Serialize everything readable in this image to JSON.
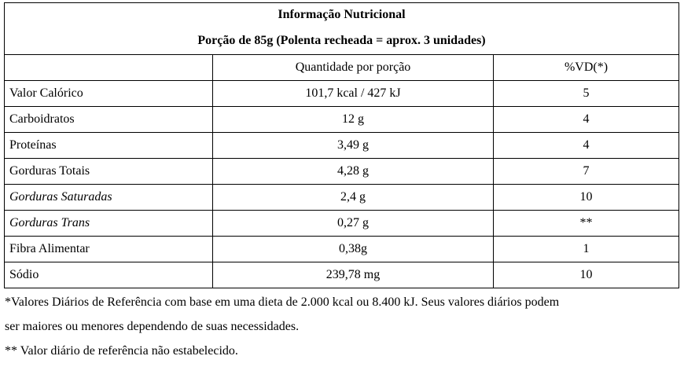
{
  "table": {
    "title": "Informação Nutricional",
    "subtitle": "Porção de 85g (Polenta recheada = aprox. 3 unidades)",
    "header": [
      "Quantidade por porção",
      "%VD(*)"
    ],
    "rows": [
      [
        "Valor Calórico",
        "101,7 kcal / 427 kJ",
        "5"
      ],
      [
        "Carboidratos",
        "12 g",
        "4"
      ],
      [
        "Proteínas",
        "3,49 g",
        "4"
      ],
      [
        "Gorduras Totais",
        "4,28 g",
        "7"
      ],
      [
        "Gorduras Saturadas",
        "2,4 g",
        "10"
      ],
      [
        "Gorduras Trans",
        "0,27 g",
        "**"
      ],
      [
        "Fibra Alimentar",
        "0,38g",
        "1"
      ],
      [
        "Sódio",
        "239,78 mg",
        "10"
      ]
    ]
  },
  "footnotes": [
    "*Valores Diários de Referência com base em uma dieta de 2.000 kcal ou 8.400 kJ. Seus valores diários podem",
    "ser maiores ou menores dependendo de suas necessidades.",
    "** Valor diário de referência não estabelecido."
  ]
}
